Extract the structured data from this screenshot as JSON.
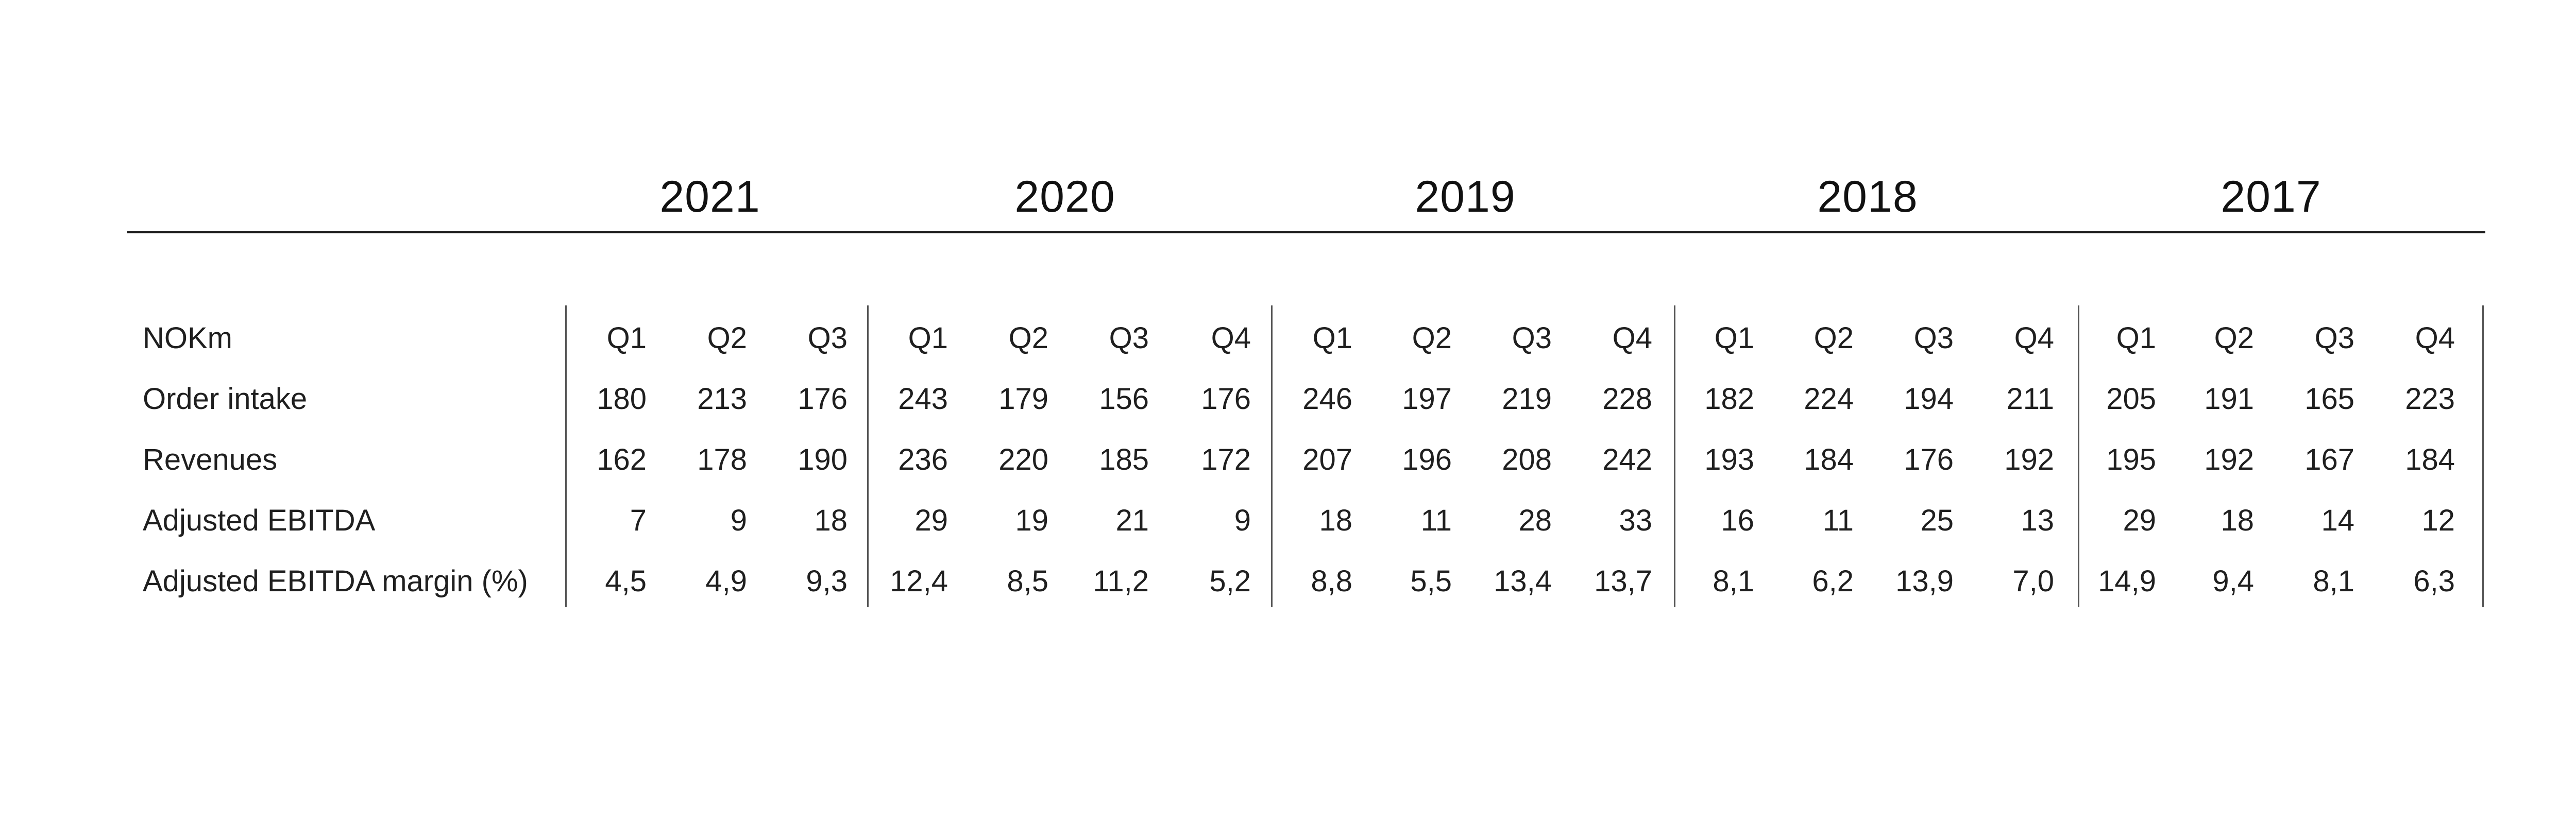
{
  "years": [
    "2021",
    "2020",
    "2019",
    "2018",
    "2017"
  ],
  "table": {
    "columns": [
      {
        "year": "2021",
        "quarter": "Q1"
      },
      {
        "year": "2021",
        "quarter": "Q2"
      },
      {
        "year": "2021",
        "quarter": "Q3"
      },
      {
        "year": "2020",
        "quarter": "Q1"
      },
      {
        "year": "2020",
        "quarter": "Q2"
      },
      {
        "year": "2020",
        "quarter": "Q3"
      },
      {
        "year": "2020",
        "quarter": "Q4"
      },
      {
        "year": "2019",
        "quarter": "Q1"
      },
      {
        "year": "2019",
        "quarter": "Q2"
      },
      {
        "year": "2019",
        "quarter": "Q3"
      },
      {
        "year": "2019",
        "quarter": "Q4"
      },
      {
        "year": "2018",
        "quarter": "Q1"
      },
      {
        "year": "2018",
        "quarter": "Q2"
      },
      {
        "year": "2018",
        "quarter": "Q3"
      },
      {
        "year": "2018",
        "quarter": "Q4"
      },
      {
        "year": "2017",
        "quarter": "Q1"
      },
      {
        "year": "2017",
        "quarter": "Q2"
      },
      {
        "year": "2017",
        "quarter": "Q3"
      },
      {
        "year": "2017",
        "quarter": "Q4"
      }
    ],
    "rows": [
      {
        "label": "NOKm",
        "values": [
          "Q1",
          "Q2",
          "Q3",
          "Q1",
          "Q2",
          "Q3",
          "Q4",
          "Q1",
          "Q2",
          "Q3",
          "Q4",
          "Q1",
          "Q2",
          "Q3",
          "Q4",
          "Q1",
          "Q2",
          "Q3",
          "Q4"
        ]
      },
      {
        "label": "Order intake",
        "values": [
          "180",
          "213",
          "176",
          "243",
          "179",
          "156",
          "176",
          "246",
          "197",
          "219",
          "228",
          "182",
          "224",
          "194",
          "211",
          "205",
          "191",
          "165",
          "223"
        ]
      },
      {
        "label": "Revenues",
        "values": [
          "162",
          "178",
          "190",
          "236",
          "220",
          "185",
          "172",
          "207",
          "196",
          "208",
          "242",
          "193",
          "184",
          "176",
          "192",
          "195",
          "192",
          "167",
          "184"
        ]
      },
      {
        "label": "Adjusted EBITDA",
        "values": [
          "7",
          "9",
          "18",
          "29",
          "19",
          "21",
          "9",
          "18",
          "11",
          "28",
          "33",
          "16",
          "11",
          "25",
          "13",
          "29",
          "18",
          "14",
          "12"
        ]
      },
      {
        "label": "Adjusted EBITDA margin (%)",
        "values": [
          "4,5",
          "4,9",
          "9,3",
          "12,4",
          "8,5",
          "11,2",
          "5,2",
          "8,8",
          "5,5",
          "13,4",
          "13,7",
          "8,1",
          "6,2",
          "13,9",
          "7,0",
          "14,9",
          "9,4",
          "8,1",
          "6,3"
        ]
      }
    ]
  }
}
